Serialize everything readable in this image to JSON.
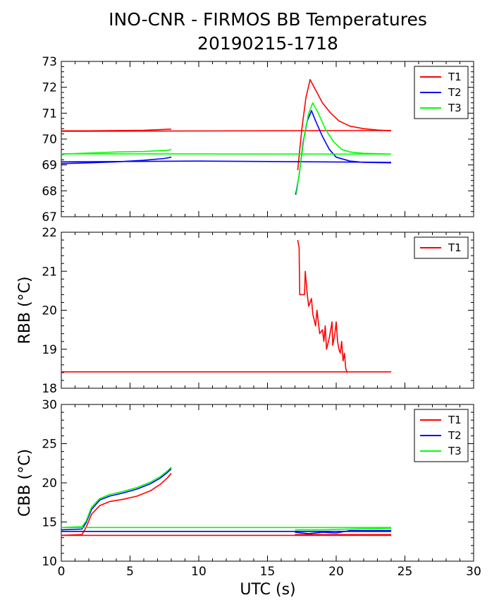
{
  "title_line1": "INO-CNR - FIRMOS BB Temperatures",
  "title_line2": "20190215-1718",
  "xlabel": "UTC (s)",
  "chart_data": [
    {
      "type": "line",
      "ylabel": "",
      "xlim": [
        0,
        30
      ],
      "ylim": [
        67,
        73
      ],
      "xticks": [
        0,
        5,
        10,
        15,
        20,
        25,
        30
      ],
      "yticks": [
        67,
        68,
        69,
        70,
        71,
        72,
        73
      ],
      "legend": "top-right",
      "series": [
        {
          "name": "T1",
          "color": "#ff0000",
          "segments": [
            [
              [
                0.0,
                70.32
              ],
              [
                2.0,
                70.32
              ],
              [
                4.0,
                70.33
              ],
              [
                6.0,
                70.34
              ],
              [
                7.8,
                70.38
              ],
              [
                8.0,
                70.38
              ]
            ],
            [
              [
                0.0,
                70.3
              ],
              [
                24.0,
                70.33
              ]
            ],
            [
              [
                17.2,
                68.8
              ],
              [
                17.5,
                70.4
              ],
              [
                17.8,
                71.6
              ],
              [
                18.1,
                72.3
              ],
              [
                18.4,
                72.0
              ],
              [
                19.0,
                71.4
              ],
              [
                19.6,
                71.0
              ],
              [
                20.2,
                70.7
              ],
              [
                21.0,
                70.5
              ],
              [
                22.0,
                70.4
              ],
              [
                23.0,
                70.35
              ],
              [
                24.0,
                70.32
              ]
            ]
          ]
        },
        {
          "name": "T2",
          "color": "#0000ff",
          "segments": [
            [
              [
                0.0,
                69.05
              ],
              [
                2.0,
                69.08
              ],
              [
                4.0,
                69.12
              ],
              [
                6.0,
                69.18
              ],
              [
                7.5,
                69.25
              ],
              [
                8.0,
                69.3
              ]
            ],
            [
              [
                0.0,
                69.12
              ],
              [
                10.0,
                69.15
              ],
              [
                24.0,
                69.1
              ]
            ],
            [
              [
                17.05,
                67.85
              ],
              [
                17.3,
                68.6
              ],
              [
                17.6,
                69.9
              ],
              [
                17.9,
                70.7
              ],
              [
                18.2,
                71.1
              ],
              [
                18.5,
                70.7
              ],
              [
                19.0,
                70.1
              ],
              [
                19.5,
                69.6
              ],
              [
                20.0,
                69.3
              ],
              [
                21.0,
                69.15
              ],
              [
                22.0,
                69.1
              ],
              [
                24.0,
                69.08
              ]
            ]
          ]
        },
        {
          "name": "T3",
          "color": "#00ff00",
          "segments": [
            [
              [
                0.0,
                69.42
              ],
              [
                2.0,
                69.46
              ],
              [
                4.0,
                69.5
              ],
              [
                6.0,
                69.52
              ],
              [
                7.8,
                69.57
              ],
              [
                8.0,
                69.6
              ]
            ],
            [
              [
                0.0,
                69.43
              ],
              [
                24.0,
                69.42
              ]
            ],
            [
              [
                17.1,
                67.9
              ],
              [
                17.4,
                69.0
              ],
              [
                17.7,
                70.2
              ],
              [
                18.0,
                71.0
              ],
              [
                18.3,
                71.4
              ],
              [
                18.7,
                71.0
              ],
              [
                19.2,
                70.4
              ],
              [
                19.8,
                69.9
              ],
              [
                20.4,
                69.6
              ],
              [
                21.0,
                69.5
              ],
              [
                22.0,
                69.45
              ],
              [
                24.0,
                69.42
              ]
            ]
          ]
        }
      ]
    },
    {
      "type": "line",
      "ylabel": "RBB (°C)",
      "xlim": [
        0,
        30
      ],
      "ylim": [
        18,
        22
      ],
      "xticks": [
        0,
        5,
        10,
        15,
        20,
        25,
        30
      ],
      "yticks": [
        18,
        19,
        20,
        21,
        22
      ],
      "legend": "top-right",
      "series": [
        {
          "name": "T1",
          "color": "#ff0000",
          "segments": [
            [
              [
                0.0,
                18.42
              ],
              [
                24.0,
                18.42
              ]
            ],
            [
              [
                17.2,
                21.8
              ],
              [
                17.3,
                21.6
              ],
              [
                17.35,
                20.4
              ],
              [
                17.7,
                20.4
              ],
              [
                17.75,
                21.0
              ],
              [
                17.9,
                20.4
              ],
              [
                18.0,
                20.1
              ],
              [
                18.2,
                20.3
              ],
              [
                18.3,
                19.9
              ],
              [
                18.5,
                19.6
              ],
              [
                18.6,
                20.0
              ],
              [
                18.8,
                19.4
              ],
              [
                19.0,
                19.5
              ],
              [
                19.1,
                19.2
              ],
              [
                19.2,
                19.6
              ],
              [
                19.3,
                19.0
              ],
              [
                19.5,
                19.3
              ],
              [
                19.7,
                19.7
              ],
              [
                19.75,
                19.1
              ],
              [
                19.9,
                19.4
              ],
              [
                20.0,
                19.7
              ],
              [
                20.1,
                19.2
              ],
              [
                20.2,
                19.0
              ],
              [
                20.3,
                18.9
              ],
              [
                20.4,
                19.2
              ],
              [
                20.5,
                18.7
              ],
              [
                20.6,
                18.9
              ],
              [
                20.7,
                18.5
              ],
              [
                20.8,
                18.4
              ]
            ]
          ]
        }
      ]
    },
    {
      "type": "line",
      "ylabel": "CBB (°C)",
      "xlim": [
        0,
        30
      ],
      "ylim": [
        10,
        30
      ],
      "xticks": [
        0,
        5,
        10,
        15,
        20,
        25,
        30
      ],
      "yticks": [
        10,
        15,
        20,
        25,
        30
      ],
      "legend": "top-right",
      "series": [
        {
          "name": "T1",
          "color": "#ff0000",
          "segments": [
            [
              [
                0.0,
                13.3
              ],
              [
                1.5,
                13.4
              ],
              [
                1.8,
                14.3
              ],
              [
                2.2,
                16.0
              ],
              [
                2.8,
                17.1
              ],
              [
                3.5,
                17.6
              ],
              [
                4.5,
                17.9
              ],
              [
                5.5,
                18.3
              ],
              [
                6.5,
                19.0
              ],
              [
                7.2,
                19.8
              ],
              [
                7.7,
                20.6
              ],
              [
                8.0,
                21.2
              ]
            ],
            [
              [
                0.0,
                13.3
              ],
              [
                24.0,
                13.3
              ]
            ],
            [
              [
                17.0,
                13.4
              ],
              [
                20.0,
                13.4
              ],
              [
                24.0,
                13.4
              ]
            ]
          ]
        },
        {
          "name": "T2",
          "color": "#0000ff",
          "segments": [
            [
              [
                0.0,
                14.0
              ],
              [
                1.5,
                14.1
              ],
              [
                1.8,
                14.9
              ],
              [
                2.2,
                16.6
              ],
              [
                2.8,
                17.8
              ],
              [
                3.5,
                18.3
              ],
              [
                4.5,
                18.7
              ],
              [
                5.5,
                19.2
              ],
              [
                6.5,
                19.9
              ],
              [
                7.2,
                20.6
              ],
              [
                7.7,
                21.3
              ],
              [
                8.0,
                21.8
              ]
            ],
            [
              [
                0.0,
                13.8
              ],
              [
                24.0,
                13.8
              ]
            ],
            [
              [
                17.0,
                13.7
              ],
              [
                18.0,
                13.5
              ],
              [
                19.0,
                13.7
              ],
              [
                20.0,
                13.6
              ],
              [
                21.0,
                13.9
              ],
              [
                24.0,
                13.9
              ]
            ]
          ]
        },
        {
          "name": "T3",
          "color": "#00ff00",
          "segments": [
            [
              [
                0.0,
                14.3
              ],
              [
                1.5,
                14.4
              ],
              [
                1.8,
                15.1
              ],
              [
                2.2,
                16.9
              ],
              [
                2.8,
                18.0
              ],
              [
                3.5,
                18.5
              ],
              [
                4.5,
                18.9
              ],
              [
                5.5,
                19.4
              ],
              [
                6.5,
                20.1
              ],
              [
                7.2,
                20.8
              ],
              [
                7.7,
                21.5
              ],
              [
                8.0,
                22.0
              ]
            ],
            [
              [
                0.0,
                14.3
              ],
              [
                24.0,
                14.3
              ]
            ],
            [
              [
                17.0,
                14.0
              ],
              [
                19.0,
                14.0
              ],
              [
                21.0,
                14.1
              ],
              [
                24.0,
                14.2
              ]
            ]
          ]
        }
      ]
    }
  ]
}
